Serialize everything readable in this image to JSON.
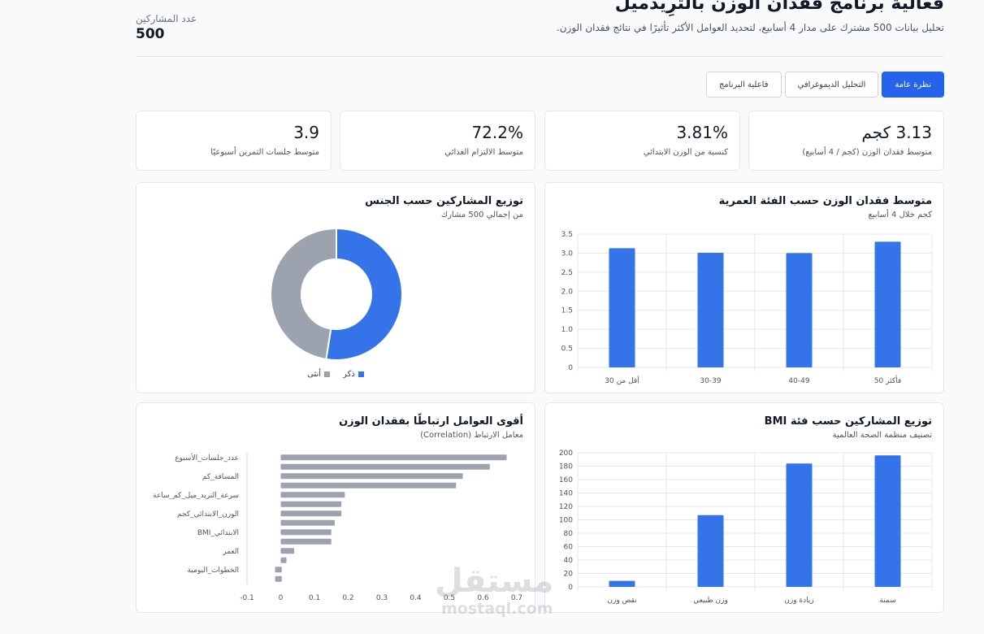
{
  "header": {
    "title": "فعالية برنامج فقدان الوزن بالترِيدميل",
    "subtitle": "تحليل بيانات 500 مشترك على مدار 4 أسابيع، لتحديد العوامل الأكثر تأثيرًا في نتائج فقدان الوزن.",
    "participants_label": "عدد المشاركين",
    "participants_value": "500"
  },
  "tabs": [
    {
      "label": "نظرة عامة",
      "active": true
    },
    {
      "label": "التحليل الديموغرافي",
      "active": false
    },
    {
      "label": "فاعلية البرنامج",
      "active": false
    }
  ],
  "kpis": [
    {
      "value": "3.13 كجم",
      "label": "متوسط فقدان الوزن (كجم / 4 أسابيع)"
    },
    {
      "value": "3.81%",
      "label": "كنسبة من الوزن الابتدائي"
    },
    {
      "value": "72.2%",
      "label": "متوسط الالتزام الغذائي"
    },
    {
      "value": "3.9",
      "label": "متوسط جلسات التمرين أسبوعيًا"
    }
  ],
  "colors": {
    "primary": "#2563eb",
    "bar_blue": "#3474e8",
    "gray": "#9ca3af",
    "grid": "#e5e7eb"
  },
  "cards": {
    "age": {
      "title": "متوسط فقدان الوزن حسب الفئة العمرية",
      "subtitle": "كجم خلال 4 أسابيع"
    },
    "gender": {
      "title": "توزيع المشاركين حسب الجنس",
      "subtitle": "من إجمالي 500 مشارك"
    },
    "bmi": {
      "title": "توزيع المشاركين حسب فئة BMI",
      "subtitle": "تصنيف منظمة الصحة العالمية"
    },
    "corr": {
      "title": "أقوى العوامل ارتباطًا بفقدان الوزن",
      "subtitle": "معامل الارتباط (Correlation)"
    }
  },
  "watermark": {
    "text": "مستقل",
    "sub": "mostaql.com"
  },
  "chart_data": [
    {
      "id": "age",
      "type": "bar",
      "categories": [
        "أقل من 30",
        "30-39",
        "40-49",
        "50 فأكثر"
      ],
      "values": [
        3.13,
        3.01,
        3.0,
        3.3
      ],
      "ylim": [
        0,
        3.5
      ],
      "yticks": [
        "0",
        "0.5",
        "1.0",
        "1.5",
        "2.0",
        "2.5",
        "3.0",
        "3.5"
      ],
      "grid": true
    },
    {
      "id": "gender",
      "type": "pie",
      "categories": [
        "ذكر",
        "أنثى"
      ],
      "values": [
        52.5,
        47.5
      ],
      "colors": [
        "#3474e8",
        "#9ca3af"
      ],
      "legend": "bottom"
    },
    {
      "id": "bmi",
      "type": "bar",
      "categories": [
        "نقص وزن",
        "وزن طبيعي",
        "زيادة وزن",
        "سمنة"
      ],
      "values": [
        9,
        107,
        184,
        196
      ],
      "ylim": [
        0,
        200
      ],
      "yticks": [
        "0",
        "20",
        "40",
        "60",
        "80",
        "100",
        "120",
        "140",
        "160",
        "180",
        "200"
      ],
      "grid": true
    },
    {
      "id": "corr",
      "type": "bar",
      "orientation": "horizontal",
      "categories": [
        "عدد_جلسات_الأسبوع",
        "",
        "المسافة_كم",
        "",
        "سرعة_التريد_ميل_كم_ساعة",
        "",
        "الوزن_الابتدائي_كجم",
        "",
        "BMI_الابتدائي",
        "",
        "العمر",
        "",
        "الخطوات_اليومية",
        ""
      ],
      "values": [
        0.67,
        0.62,
        0.54,
        0.52,
        0.19,
        0.18,
        0.18,
        0.16,
        0.15,
        0.15,
        0.04,
        0.0,
        -0.02,
        -0.02
      ],
      "xlim": [
        -0.1,
        0.7
      ],
      "xticks": [
        "-0.1",
        "0",
        "0.1",
        "0.2",
        "0.3",
        "0.4",
        "0.5",
        "0.6",
        "0.7"
      ],
      "bar_color": "#9ca3af"
    }
  ]
}
